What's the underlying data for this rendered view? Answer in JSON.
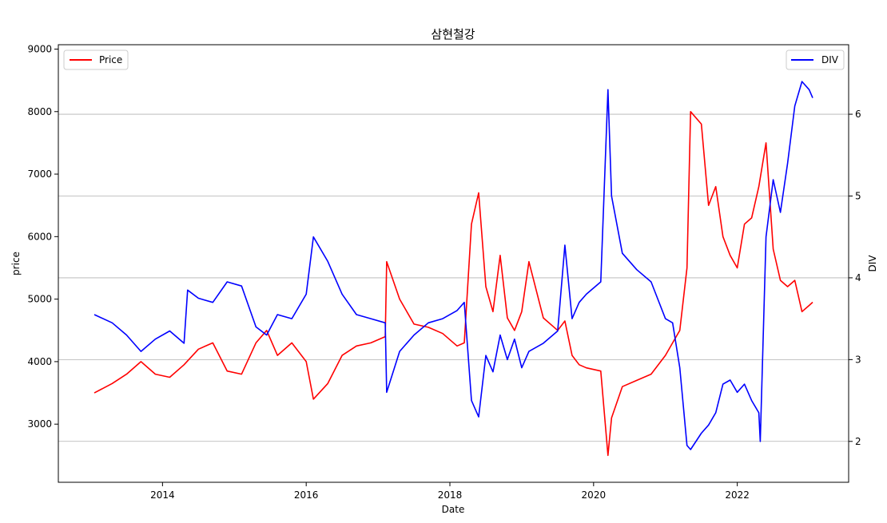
{
  "chart_data": {
    "type": "line",
    "title": "삼현철강",
    "xlabel": "Date",
    "ylabel": "price",
    "y2label": "DIV",
    "x_ticks": [
      "2014",
      "2016",
      "2018",
      "2020",
      "2022"
    ],
    "x_tick_values": [
      2014.0,
      2016.0,
      2018.0,
      2020.0,
      2022.0
    ],
    "xlim": [
      2012.55,
      2023.55
    ],
    "ylim": [
      2070,
      9070
    ],
    "y_ticks": [
      3000,
      4000,
      5000,
      6000,
      7000,
      8000,
      9000
    ],
    "y2lim": [
      1.5,
      6.85
    ],
    "y2_ticks": [
      2,
      3,
      4,
      5,
      6
    ],
    "grid": "horizontal lines at secondary-axis ticks",
    "legend_left": {
      "label": "Price",
      "color": "#ff0000",
      "position": "top-left"
    },
    "legend_right": {
      "label": "DIV",
      "color": "#0000ff",
      "position": "top-right"
    },
    "series": [
      {
        "name": "Price",
        "axis": "left",
        "color": "#ff0000",
        "x": [
          2013.05,
          2013.3,
          2013.5,
          2013.7,
          2013.9,
          2014.1,
          2014.3,
          2014.5,
          2014.7,
          2014.9,
          2015.1,
          2015.3,
          2015.45,
          2015.6,
          2015.8,
          2016.0,
          2016.1,
          2016.3,
          2016.5,
          2016.7,
          2016.9,
          2017.1,
          2017.12,
          2017.3,
          2017.5,
          2017.7,
          2017.9,
          2018.1,
          2018.2,
          2018.3,
          2018.4,
          2018.5,
          2018.6,
          2018.7,
          2018.8,
          2018.9,
          2019.0,
          2019.1,
          2019.3,
          2019.5,
          2019.6,
          2019.7,
          2019.8,
          2019.9,
          2020.1,
          2020.2,
          2020.25,
          2020.4,
          2020.6,
          2020.8,
          2021.0,
          2021.1,
          2021.2,
          2021.3,
          2021.35,
          2021.5,
          2021.6,
          2021.7,
          2021.8,
          2021.9,
          2022.0,
          2022.1,
          2022.2,
          2022.3,
          2022.4,
          2022.5,
          2022.6,
          2022.7,
          2022.8,
          2022.9,
          2023.0,
          2023.05
        ],
        "y": [
          3500,
          3650,
          3800,
          4000,
          3800,
          3750,
          3950,
          4200,
          4300,
          3850,
          3800,
          4300,
          4500,
          4100,
          4300,
          4000,
          3400,
          3650,
          4100,
          4250,
          4300,
          4400,
          5600,
          5000,
          4600,
          4550,
          4450,
          4250,
          4300,
          6200,
          6700,
          5200,
          4800,
          5700,
          4700,
          4500,
          4800,
          5600,
          4700,
          4500,
          4650,
          4100,
          3950,
          3900,
          3850,
          2500,
          3100,
          3600,
          3700,
          3800,
          4100,
          4300,
          4500,
          5500,
          8000,
          7800,
          6500,
          6800,
          6000,
          5700,
          5500,
          6200,
          6300,
          6800,
          7500,
          5800,
          5300,
          5200,
          5300,
          4800,
          4900,
          4950
        ]
      },
      {
        "name": "DIV",
        "axis": "right",
        "color": "#0000ff",
        "x": [
          2013.05,
          2013.3,
          2013.5,
          2013.7,
          2013.9,
          2014.1,
          2014.3,
          2014.35,
          2014.5,
          2014.7,
          2014.9,
          2015.1,
          2015.3,
          2015.45,
          2015.6,
          2015.8,
          2016.0,
          2016.1,
          2016.3,
          2016.5,
          2016.7,
          2016.9,
          2017.1,
          2017.12,
          2017.3,
          2017.5,
          2017.7,
          2017.9,
          2018.1,
          2018.2,
          2018.3,
          2018.4,
          2018.5,
          2018.6,
          2018.7,
          2018.8,
          2018.9,
          2019.0,
          2019.1,
          2019.3,
          2019.5,
          2019.6,
          2019.7,
          2019.8,
          2019.9,
          2020.1,
          2020.2,
          2020.25,
          2020.4,
          2020.6,
          2020.8,
          2021.0,
          2021.1,
          2021.2,
          2021.3,
          2021.35,
          2021.5,
          2021.6,
          2021.7,
          2021.8,
          2021.9,
          2022.0,
          2022.1,
          2022.2,
          2022.3,
          2022.32,
          2022.4,
          2022.5,
          2022.6,
          2022.7,
          2022.8,
          2022.9,
          2023.0,
          2023.05
        ],
        "y": [
          3.55,
          3.45,
          3.3,
          3.1,
          3.25,
          3.35,
          3.2,
          3.85,
          3.75,
          3.7,
          3.95,
          3.9,
          3.4,
          3.3,
          3.55,
          3.5,
          3.8,
          4.5,
          4.2,
          3.8,
          3.55,
          3.5,
          3.45,
          2.6,
          3.1,
          3.3,
          3.45,
          3.5,
          3.6,
          3.7,
          2.5,
          2.3,
          3.05,
          2.85,
          3.3,
          3.0,
          3.25,
          2.9,
          3.1,
          3.2,
          3.35,
          4.4,
          3.5,
          3.7,
          3.8,
          3.95,
          6.3,
          5.0,
          4.3,
          4.1,
          3.95,
          3.5,
          3.45,
          2.9,
          1.95,
          1.9,
          2.1,
          2.2,
          2.35,
          2.7,
          2.75,
          2.6,
          2.7,
          2.5,
          2.35,
          2.0,
          4.5,
          5.2,
          4.8,
          5.4,
          6.1,
          6.4,
          6.3,
          6.2
        ]
      }
    ]
  }
}
